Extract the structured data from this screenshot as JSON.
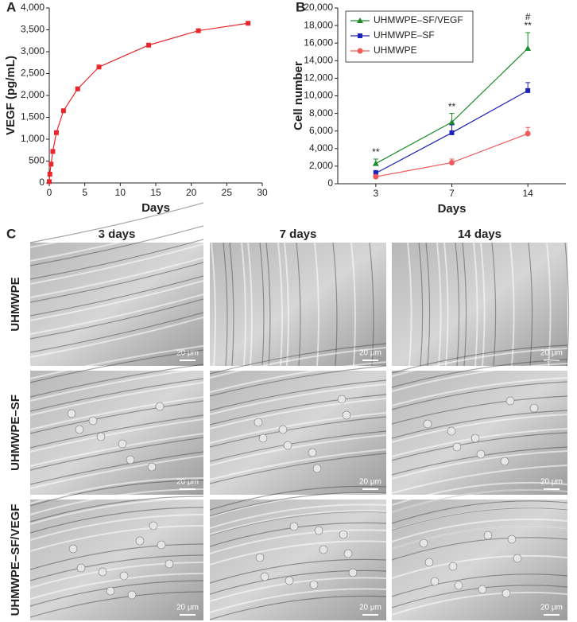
{
  "chart_data": [
    {
      "type": "line",
      "panel": "A",
      "x_label": "Days",
      "y_label": "VEGF (pg/mL)",
      "x": [
        0,
        0.08,
        0.25,
        0.5,
        1,
        2,
        4,
        7,
        14,
        21,
        28
      ],
      "series": [
        {
          "color": "#e8262b",
          "marker": "square",
          "values": [
            30,
            200,
            430,
            720,
            1150,
            1650,
            2150,
            2650,
            3150,
            3480,
            3650
          ]
        }
      ],
      "xlim": [
        0,
        30
      ],
      "xticks": [
        0,
        5,
        10,
        15,
        20,
        25,
        30
      ],
      "ylim": [
        0,
        4000
      ],
      "yticks": [
        0,
        500,
        {
          "value": 1000,
          "label": "1,000"
        },
        {
          "value": 1500,
          "label": "1,500"
        },
        {
          "value": 2000,
          "label": "2,000"
        },
        {
          "value": 2500,
          "label": "2,500"
        },
        {
          "value": 3000,
          "label": "3,000"
        },
        {
          "value": 3500,
          "label": "3,500"
        },
        {
          "value": 4000,
          "label": "4,000"
        }
      ]
    },
    {
      "type": "line",
      "panel": "B",
      "x_label": "Days",
      "y_label": "Cell number",
      "categories": [
        "3",
        "7",
        "14"
      ],
      "series": [
        {
          "name": "UHMWPE–SF/VEGF",
          "color": "#1a8c2a",
          "marker": "triangle",
          "values": [
            2300,
            7000,
            15400
          ],
          "errors": [
            500,
            1000,
            1800
          ]
        },
        {
          "name": "UHMWPE–SF",
          "color": "#1c22b8",
          "marker": "square",
          "values": [
            1200,
            5800,
            10600
          ],
          "errors": [
            300,
            900,
            900
          ]
        },
        {
          "name": "UHMWPE",
          "color": "#f05a5a",
          "marker": "circle",
          "values": [
            800,
            2400,
            5700
          ],
          "errors": [
            150,
            400,
            700
          ]
        }
      ],
      "annotations": [
        [
          "**"
        ],
        [
          "**"
        ],
        [
          "#",
          "**"
        ]
      ],
      "ylim": [
        0,
        20000
      ],
      "yticks": [
        0,
        {
          "value": 2000,
          "label": "2,000"
        },
        {
          "value": 4000,
          "label": "4,000"
        },
        {
          "value": 6000,
          "label": "6,000"
        },
        {
          "value": 8000,
          "label": "8,000"
        },
        {
          "value": 10000,
          "label": "10,000"
        },
        {
          "value": 12000,
          "label": "12,000"
        },
        {
          "value": 14000,
          "label": "14,000"
        },
        {
          "value": 16000,
          "label": "16,000"
        },
        {
          "value": 18000,
          "label": "18,000"
        },
        {
          "value": 20000,
          "label": "20,000"
        }
      ],
      "legend": "upper left"
    }
  ],
  "panel_c": {
    "label": "C",
    "columns": [
      "3 days",
      "7 days",
      "14 days"
    ],
    "rows": [
      "UHMWPE",
      "UHMWPE–SF",
      "UHMWPE–SF/VEGF"
    ],
    "scale_bar": "20 μm"
  }
}
